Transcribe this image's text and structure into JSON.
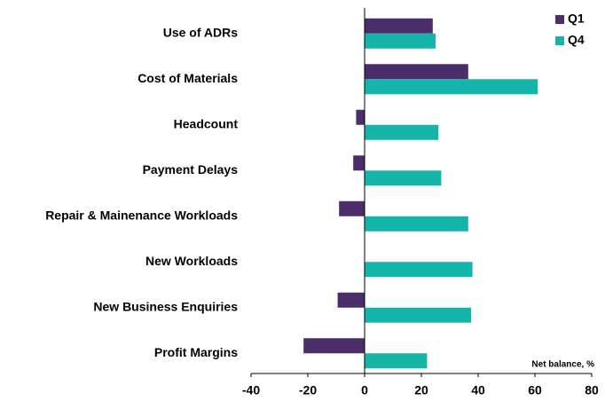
{
  "chart_data": {
    "type": "barh",
    "categories": [
      "Use of ADRs",
      "Cost of Materials",
      "Headcount",
      "Payment Delays",
      "Repair & Mainenance Workloads",
      "New Workloads",
      "New Business Enquiries",
      "Profit Margins"
    ],
    "series": [
      {
        "name": "Q1",
        "color": "#4b2d6b",
        "values": [
          24,
          36.5,
          -3,
          -4,
          -9,
          0,
          -9.5,
          -21.5
        ]
      },
      {
        "name": "Q4",
        "color": "#16b5aa",
        "values": [
          25,
          61,
          26,
          27,
          36.5,
          38,
          37.5,
          22
        ]
      }
    ],
    "xlim": [
      -40,
      80
    ],
    "xticks": [
      -40,
      -20,
      0,
      20,
      40,
      60,
      80
    ],
    "annotation": "Net balance, %",
    "legend": "upper right"
  }
}
